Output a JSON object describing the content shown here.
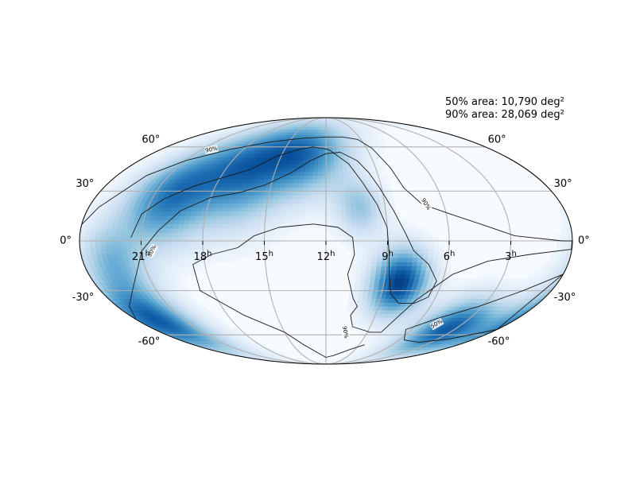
{
  "chart_data": {
    "type": "heatmap",
    "projection": "mollweide",
    "colormap": "Blues",
    "annotations": [
      "50% area: 10,790 deg²",
      "90% area: 28,069 deg²"
    ],
    "ra_tick_labels": [
      {
        "ra_hours": 21,
        "text": "21",
        "sup": "h"
      },
      {
        "ra_hours": 18,
        "text": "18",
        "sup": "h"
      },
      {
        "ra_hours": 15,
        "text": "15",
        "sup": "h"
      },
      {
        "ra_hours": 12,
        "text": "12",
        "sup": "h"
      },
      {
        "ra_hours": 9,
        "text": "9",
        "sup": "h"
      },
      {
        "ra_hours": 6,
        "text": "6",
        "sup": "h"
      },
      {
        "ra_hours": 3,
        "text": "3",
        "sup": "h"
      }
    ],
    "dec_tick_labels": [
      {
        "dec": 60,
        "text": "60°"
      },
      {
        "dec": 30,
        "text": "30°"
      },
      {
        "dec": 0,
        "text": "0°"
      },
      {
        "dec": -30,
        "text": "-30°"
      },
      {
        "dec": -60,
        "text": "-60°"
      }
    ],
    "contour_labels": [
      {
        "text": "90%",
        "ra_hours": 20.3,
        "dec": 58,
        "angle": -12
      },
      {
        "text": "90%",
        "ra_hours": 6.9,
        "dec": 22,
        "angle": 58
      },
      {
        "text": "90%",
        "ra_hours": 10.6,
        "dec": -58,
        "angle": 80
      },
      {
        "text": "50%",
        "ra_hours": 20.5,
        "dec": -6,
        "angle": -62
      },
      {
        "text": "50%",
        "ra_hours": 4.7,
        "dec": -52,
        "angle": -30
      }
    ],
    "probability_blobs": [
      {
        "ra_hours": 16.8,
        "dec": 42,
        "sigma_deg": 22,
        "amp": 0.75
      },
      {
        "ra_hours": 20.2,
        "dec": 26,
        "sigma_deg": 20,
        "amp": 0.7
      },
      {
        "ra_hours": 13.3,
        "dec": 54,
        "sigma_deg": 18,
        "amp": 0.65
      },
      {
        "ra_hours": 8.2,
        "dec": -25,
        "sigma_deg": 14,
        "amp": 1.0
      },
      {
        "ra_hours": 22.8,
        "dec": -50,
        "sigma_deg": 16,
        "amp": 0.85
      },
      {
        "ra_hours": 3.6,
        "dec": -55,
        "sigma_deg": 14,
        "amp": 0.85
      },
      {
        "ra_hours": 22.5,
        "dec": -12,
        "sigma_deg": 16,
        "amp": 0.45
      },
      {
        "ra_hours": 10.3,
        "dec": 20,
        "sigma_deg": 12,
        "amp": 0.4
      }
    ],
    "contour_90": [
      [
        22.3,
        40
      ],
      [
        21.0,
        50
      ],
      [
        19.0,
        58
      ],
      [
        16.5,
        64
      ],
      [
        14.0,
        67
      ],
      [
        12.0,
        68
      ],
      [
        10.5,
        68
      ],
      [
        9.3,
        66
      ],
      [
        8.6,
        59
      ],
      [
        8.1,
        45
      ],
      [
        7.8,
        32
      ],
      [
        7.1,
        22
      ],
      [
        5.8,
        16
      ],
      [
        4.4,
        10
      ],
      [
        2.8,
        3
      ],
      [
        0.5,
        0
      ],
      [
        0.02,
        0
      ],
      [
        0.02,
        -5
      ],
      [
        2.0,
        -8
      ],
      [
        4.0,
        -12
      ],
      [
        5.6,
        -20
      ],
      [
        7.0,
        -36
      ],
      [
        7.6,
        -48
      ],
      [
        8.0,
        -58
      ],
      [
        8.8,
        -58
      ],
      [
        9.5,
        -56
      ],
      [
        10.2,
        -54
      ],
      [
        10.5,
        -46
      ],
      [
        10.2,
        -40
      ],
      [
        10.5,
        -35
      ],
      [
        10.9,
        -20
      ],
      [
        10.6,
        -8
      ],
      [
        10.7,
        2
      ],
      [
        11.4,
        8
      ],
      [
        12.6,
        10
      ],
      [
        14.3,
        8
      ],
      [
        15.5,
        3
      ],
      [
        16.3,
        -4
      ],
      [
        17.6,
        -8
      ],
      [
        18.6,
        -14
      ],
      [
        18.7,
        -30
      ],
      [
        17.0,
        -46
      ],
      [
        15.0,
        -58
      ],
      [
        14.0,
        -68
      ],
      [
        13.0,
        -75
      ],
      [
        12.0,
        -80
      ],
      [
        11.0,
        -78
      ],
      [
        9.5,
        -72
      ],
      [
        8.5,
        -68
      ]
    ],
    "contour_50": [
      [
        0.02,
        40
      ],
      [
        0.02,
        80
      ],
      [
        12,
        88
      ],
      [
        23.98,
        80
      ],
      [
        23.98,
        40
      ]
    ],
    "contour_50_north": [
      [
        21.5,
        2
      ],
      [
        21.2,
        16
      ],
      [
        20.4,
        25
      ],
      [
        19.2,
        33
      ],
      [
        18.0,
        38
      ],
      [
        16.5,
        44
      ],
      [
        15.3,
        53
      ],
      [
        14.0,
        58
      ],
      [
        13.0,
        60
      ],
      [
        11.8,
        58
      ],
      [
        10.6,
        48
      ],
      [
        10.0,
        36
      ],
      [
        9.4,
        22
      ],
      [
        9.0,
        8
      ],
      [
        8.9,
        -8
      ],
      [
        8.8,
        -20
      ],
      [
        8.5,
        -32
      ],
      [
        7.9,
        -38
      ],
      [
        7.0,
        -38
      ],
      [
        6.4,
        -34
      ],
      [
        6.3,
        -24
      ],
      [
        6.9,
        -14
      ],
      [
        7.7,
        -6
      ],
      [
        8.1,
        4
      ],
      [
        8.6,
        18
      ],
      [
        9.1,
        32
      ],
      [
        9.5,
        42
      ],
      [
        10.0,
        50
      ],
      [
        11.0,
        56
      ],
      [
        12.0,
        55
      ],
      [
        13.0,
        50
      ],
      [
        14.0,
        42
      ],
      [
        15.3,
        34
      ],
      [
        16.6,
        29
      ],
      [
        18.0,
        26
      ],
      [
        19.3,
        18
      ],
      [
        20.2,
        6
      ],
      [
        21.0,
        -6
      ],
      [
        21.6,
        -20
      ],
      [
        22.3,
        -30
      ],
      [
        23.3,
        -40
      ],
      [
        23.9,
        -48
      ]
    ],
    "contour_50_south": [
      [
        0.02,
        -20
      ],
      [
        1.5,
        -30
      ],
      [
        3.2,
        -40
      ],
      [
        5.0,
        -48
      ],
      [
        6.4,
        -56
      ],
      [
        5.6,
        -64
      ],
      [
        4.0,
        -66
      ],
      [
        2.0,
        -63
      ],
      [
        0.02,
        -56
      ]
    ],
    "contour_90_edge": [
      [
        23.98,
        10
      ],
      [
        23.5,
        20
      ],
      [
        22.8,
        30
      ],
      [
        22.3,
        40
      ]
    ]
  }
}
